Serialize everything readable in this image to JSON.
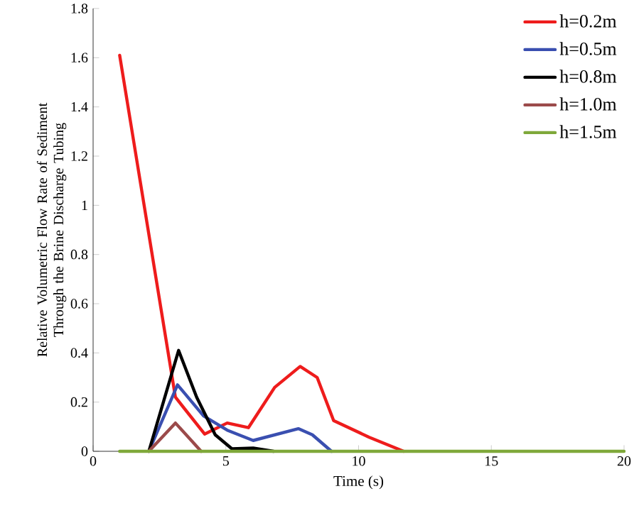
{
  "chart_data": {
    "type": "line",
    "xlabel": "Time (s)",
    "ylabel": "Relative Volumetric Flow Rate of Sediment Through the Brine Discharge Tubing",
    "xlim": [
      0,
      20
    ],
    "ylim": [
      0,
      1.8
    ],
    "xticks": [
      0,
      5,
      10,
      15,
      20
    ],
    "yticks": [
      0,
      0.2,
      0.4,
      0.6,
      0.8,
      1,
      1.2,
      1.4,
      1.6,
      1.8
    ],
    "legend": "top right",
    "grid": false,
    "marker": "none",
    "line_style": "solid",
    "series": [
      {
        "name": "h=0.2m",
        "color": "#ee1c1c",
        "x": [
          1.0,
          3.1,
          4.2,
          5.05,
          5.85,
          6.84,
          7.8,
          8.44,
          9.06,
          10.4,
          11.7
        ],
        "values": [
          1.61,
          0.22,
          0.07,
          0.115,
          0.096,
          0.26,
          0.345,
          0.3,
          0.125,
          0.057,
          0
        ]
      },
      {
        "name": "h=0.5m",
        "color": "#3a4fb0",
        "x": [
          2.1,
          3.18,
          4.16,
          5.05,
          6.03,
          7.73,
          8.26,
          8.98
        ],
        "values": [
          0,
          0.27,
          0.144,
          0.086,
          0.044,
          0.092,
          0.067,
          0
        ]
      },
      {
        "name": "h=0.8m",
        "color": "#000000",
        "x": [
          2.1,
          3.22,
          3.9,
          4.6,
          5.23,
          6.03,
          6.8
        ],
        "values": [
          0,
          0.41,
          0.22,
          0.067,
          0.01,
          0.013,
          0
        ]
      },
      {
        "name": "h=1.0m",
        "color": "#9b4a4a",
        "x": [
          2.1,
          3.1,
          4.07
        ],
        "values": [
          0,
          0.115,
          0
        ]
      },
      {
        "name": "h=1.5m",
        "color": "#7fa83a",
        "x": [
          1.0,
          20.0
        ],
        "values": [
          0,
          0
        ]
      }
    ]
  }
}
